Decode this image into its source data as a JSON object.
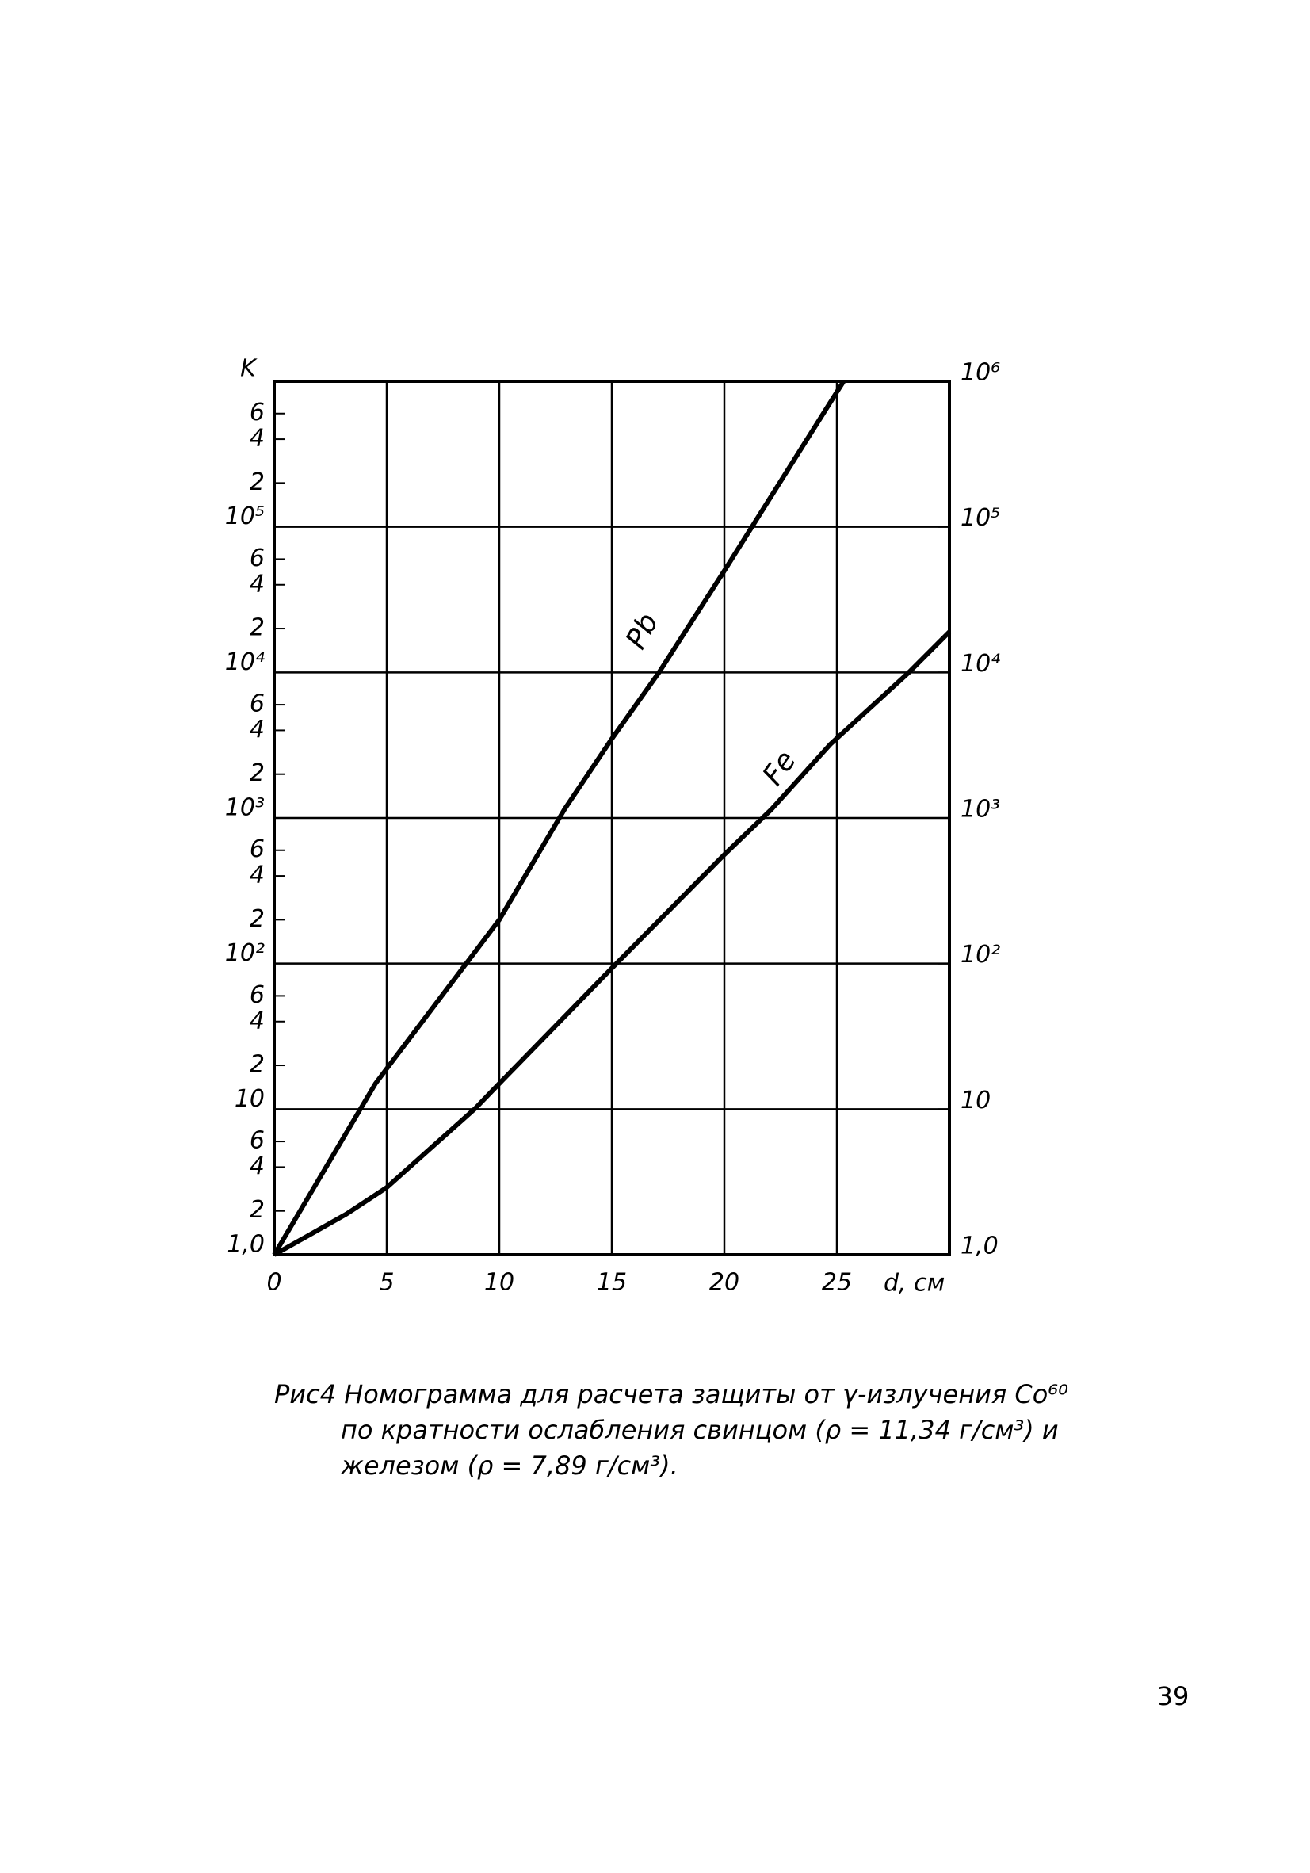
{
  "chart_data": {
    "type": "line",
    "y_axis_label": "K",
    "x_axis_label": "d, см",
    "xlim": [
      0,
      30
    ],
    "xticks": [
      0,
      5,
      10,
      15,
      20,
      25
    ],
    "ylim": [
      1,
      1000000
    ],
    "log_y": true,
    "grid": true,
    "yticks": [
      {
        "value": 1,
        "label": "1,0"
      },
      2,
      4,
      6,
      10,
      {
        "value": 20,
        "label": "2"
      },
      {
        "value": 40,
        "label": "4"
      },
      {
        "value": 60,
        "label": "6"
      },
      {
        "value": 100,
        "label": "10²"
      },
      {
        "value": 200,
        "label": "2"
      },
      {
        "value": 400,
        "label": "4"
      },
      {
        "value": 600,
        "label": "6"
      },
      {
        "value": 1000,
        "label": "10³"
      },
      {
        "value": 2000,
        "label": "2"
      },
      {
        "value": 4000,
        "label": "4"
      },
      {
        "value": 6000,
        "label": "6"
      },
      {
        "value": 10000,
        "label": "10⁴"
      },
      {
        "value": 20000,
        "label": "2"
      },
      {
        "value": 40000,
        "label": "4"
      },
      {
        "value": 60000,
        "label": "6"
      },
      {
        "value": 100000,
        "label": "10⁵"
      },
      {
        "value": 200000,
        "label": "2"
      },
      {
        "value": 400000,
        "label": "4"
      },
      {
        "value": 600000,
        "label": "6"
      }
    ],
    "y2ticks": [
      {
        "value": 1,
        "label": "1,0"
      },
      10,
      {
        "value": 100,
        "label": "10²"
      },
      {
        "value": 1000,
        "label": "10³"
      },
      {
        "value": 10000,
        "label": "10⁴"
      },
      {
        "value": 100000,
        "label": "10⁵"
      },
      {
        "value": 1000000,
        "label": "10⁶"
      }
    ],
    "series": [
      {
        "name": "Pb",
        "color": "#000000",
        "x": [
          0,
          4.5,
          10,
          12.9,
          15,
          17.1,
          20,
          25.3
        ],
        "values": [
          1,
          15,
          200,
          1150,
          3500,
          10000,
          50000,
          1000000
        ]
      },
      {
        "name": "Fe",
        "color": "#000000",
        "x": [
          0,
          3.2,
          5,
          8.9,
          10,
          15,
          20,
          22.1,
          24.7,
          28.2,
          30
        ],
        "values": [
          1,
          1.9,
          2.9,
          10,
          15,
          93,
          560,
          1150,
          3200,
          10000,
          19000
        ]
      }
    ],
    "caption": [
      "Рис4  Номограмма для расчета защиты от γ-излучения Co⁶⁰",
      "по кратности ослабления свинцом (ρ = 11,34 г/см³) и",
      "железом (ρ = 7,89 г/см³)."
    ]
  },
  "page_number": "39"
}
